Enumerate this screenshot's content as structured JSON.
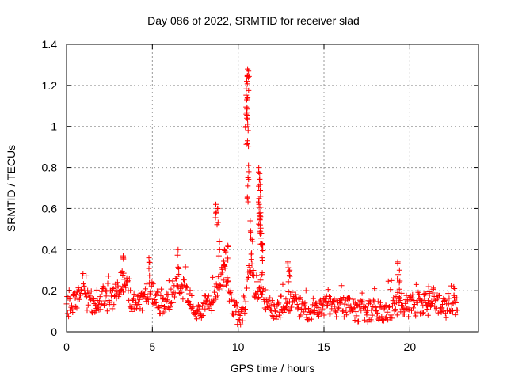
{
  "chart_data": {
    "type": "scatter",
    "title": "Day 086 of 2022, SRMTID for receiver slad",
    "xlabel": "GPS time / hours",
    "ylabel": "SRMTID / TECUs",
    "xlim": [
      0,
      24
    ],
    "ylim": [
      0,
      1.4
    ],
    "xticks": [
      0,
      5,
      10,
      15,
      20
    ],
    "xtick_labels": [
      "0",
      "5",
      "10",
      "15",
      "20"
    ],
    "yticks": [
      0,
      0.2,
      0.4,
      0.6,
      0.8,
      1,
      1.2,
      1.4
    ],
    "ytick_labels": [
      "0",
      "0.2",
      "0.4",
      "0.6",
      "0.8",
      "1",
      "1.2",
      "1.4"
    ],
    "grid": true,
    "marker": "+",
    "color": "#ff0000",
    "x_end": 22.8,
    "baseline": [
      [
        0.0,
        0.12
      ],
      [
        0.3,
        0.13
      ],
      [
        0.6,
        0.17
      ],
      [
        0.9,
        0.2
      ],
      [
        1.2,
        0.16
      ],
      [
        1.5,
        0.14
      ],
      [
        1.8,
        0.15
      ],
      [
        2.1,
        0.17
      ],
      [
        2.4,
        0.14
      ],
      [
        2.7,
        0.16
      ],
      [
        3.0,
        0.2
      ],
      [
        3.2,
        0.25
      ],
      [
        3.5,
        0.22
      ],
      [
        3.8,
        0.15
      ],
      [
        4.2,
        0.13
      ],
      [
        4.6,
        0.17
      ],
      [
        4.9,
        0.22
      ],
      [
        5.2,
        0.16
      ],
      [
        5.5,
        0.12
      ],
      [
        5.8,
        0.14
      ],
      [
        6.2,
        0.18
      ],
      [
        6.5,
        0.24
      ],
      [
        6.8,
        0.21
      ],
      [
        7.2,
        0.18
      ],
      [
        7.5,
        0.1
      ],
      [
        7.8,
        0.09
      ],
      [
        8.1,
        0.13
      ],
      [
        8.4,
        0.12
      ],
      [
        8.7,
        0.2
      ],
      [
        9.0,
        0.26
      ],
      [
        9.3,
        0.28
      ],
      [
        9.6,
        0.15
      ],
      [
        9.9,
        0.09
      ],
      [
        10.2,
        0.08
      ],
      [
        10.4,
        0.15
      ],
      [
        10.6,
        0.3
      ],
      [
        10.8,
        0.3
      ],
      [
        11.0,
        0.2
      ],
      [
        11.3,
        0.18
      ],
      [
        11.6,
        0.15
      ],
      [
        12.0,
        0.12
      ],
      [
        12.4,
        0.11
      ],
      [
        12.8,
        0.14
      ],
      [
        13.1,
        0.16
      ],
      [
        13.5,
        0.13
      ],
      [
        14.0,
        0.11
      ],
      [
        14.5,
        0.12
      ],
      [
        15.0,
        0.12
      ],
      [
        15.5,
        0.12
      ],
      [
        16.0,
        0.13
      ],
      [
        16.5,
        0.11
      ],
      [
        17.0,
        0.1
      ],
      [
        17.5,
        0.1
      ],
      [
        18.0,
        0.1
      ],
      [
        18.5,
        0.1
      ],
      [
        19.0,
        0.12
      ],
      [
        19.4,
        0.14
      ],
      [
        19.8,
        0.13
      ],
      [
        20.2,
        0.12
      ],
      [
        20.6,
        0.14
      ],
      [
        21.0,
        0.13
      ],
      [
        21.4,
        0.16
      ],
      [
        21.8,
        0.13
      ],
      [
        22.2,
        0.12
      ],
      [
        22.5,
        0.14
      ],
      [
        22.8,
        0.13
      ]
    ],
    "peaks": [
      [
        3.3,
        0.37
      ],
      [
        4.8,
        0.36
      ],
      [
        6.5,
        0.4
      ],
      [
        8.7,
        0.62
      ],
      [
        8.8,
        0.6
      ],
      [
        8.9,
        0.44
      ],
      [
        9.2,
        0.4
      ],
      [
        9.4,
        0.42
      ],
      [
        10.45,
        1.0
      ],
      [
        10.5,
        1.22
      ],
      [
        10.55,
        1.28
      ],
      [
        10.6,
        1.27
      ],
      [
        10.5,
        1.13
      ],
      [
        10.55,
        1.14
      ],
      [
        10.52,
        1.09
      ],
      [
        10.58,
        0.98
      ],
      [
        10.6,
        0.81
      ],
      [
        10.56,
        0.71
      ],
      [
        10.7,
        0.54
      ],
      [
        10.8,
        0.45
      ],
      [
        11.2,
        0.8
      ],
      [
        11.25,
        0.77
      ],
      [
        11.2,
        0.7
      ],
      [
        11.3,
        0.66
      ],
      [
        11.22,
        0.62
      ],
      [
        11.3,
        0.56
      ],
      [
        11.28,
        0.52
      ],
      [
        11.35,
        0.48
      ],
      [
        11.4,
        0.43
      ],
      [
        11.4,
        0.36
      ],
      [
        12.9,
        0.34
      ],
      [
        13.0,
        0.3
      ],
      [
        19.3,
        0.34
      ],
      [
        19.4,
        0.3
      ],
      [
        21.1,
        0.22
      ],
      [
        22.6,
        0.21
      ]
    ]
  }
}
